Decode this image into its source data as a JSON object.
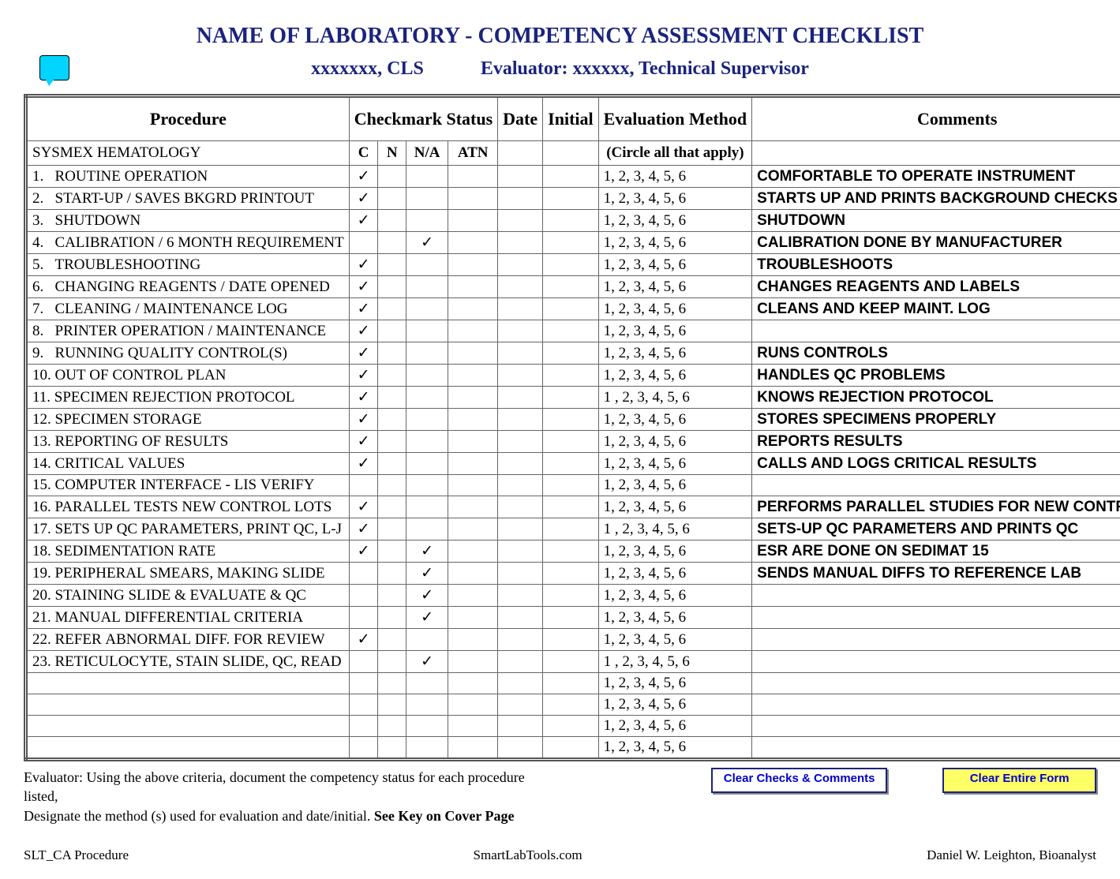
{
  "header": {
    "title": "NAME OF LABORATORY - COMPETENCY ASSESSMENT CHECKLIST",
    "person": "xxxxxxx, CLS",
    "evaluator_label": "Evaluator:",
    "evaluator": "xxxxxx, Technical Supervisor"
  },
  "columns": {
    "procedure": "Procedure",
    "checkmark": "Checkmark Status",
    "date": "Date",
    "initial": "Initial",
    "evaluation": "Evaluation Method",
    "comments": "Comments",
    "sub": {
      "c": "C",
      "n": "N",
      "na": "N/A",
      "atn": "ATN"
    }
  },
  "section": "SYSMEX HEMATOLOGY",
  "circle_note": "(Circle all that apply)",
  "eval_nums": "1,   2,   3,   4,   5,   6",
  "eval_nums_alt": "1 ,  2,   3,   4,   5,   6",
  "rows": [
    {
      "n": "1.",
      "proc": "ROUTINE OPERATION",
      "c": "✓",
      "na": "",
      "comm": "COMFORTABLE TO OPERATE INSTRUMENT",
      "alt": false
    },
    {
      "n": "2.",
      "proc": "START-UP / SAVES BKGRD PRINTOUT",
      "c": "✓",
      "na": "",
      "comm": "STARTS UP AND PRINTS BACKGROUND CHECKS",
      "alt": false
    },
    {
      "n": "3.",
      "proc": "SHUTDOWN",
      "c": "✓",
      "na": "",
      "comm": "SHUTDOWN",
      "alt": false
    },
    {
      "n": "4.",
      "proc": "CALIBRATION / 6 MONTH REQUIREMENT",
      "c": "",
      "na": "✓",
      "comm": "CALIBRATION DONE BY MANUFACTURER",
      "alt": false
    },
    {
      "n": "5.",
      "proc": "TROUBLESHOOTING",
      "c": "✓",
      "na": "",
      "comm": "TROUBLESHOOTS",
      "alt": false
    },
    {
      "n": "6.",
      "proc": "CHANGING REAGENTS / DATE OPENED",
      "c": "✓",
      "na": "",
      "comm": "CHANGES REAGENTS AND LABELS",
      "alt": false
    },
    {
      "n": "7.",
      "proc": "CLEANING / MAINTENANCE LOG",
      "c": "✓",
      "na": "",
      "comm": "CLEANS AND KEEP MAINT. LOG",
      "alt": false
    },
    {
      "n": "8.",
      "proc": "PRINTER OPERATION / MAINTENANCE",
      "c": "✓",
      "na": "",
      "comm": "",
      "alt": false
    },
    {
      "n": "9.",
      "proc": "RUNNING QUALITY CONTROL(S)",
      "c": "✓",
      "na": "",
      "comm": "RUNS CONTROLS",
      "alt": false
    },
    {
      "n": "10.",
      "proc": "OUT OF CONTROL PLAN",
      "c": "✓",
      "na": "",
      "comm": "HANDLES QC PROBLEMS",
      "alt": false
    },
    {
      "n": "11.",
      "proc": "SPECIMEN REJECTION PROTOCOL",
      "c": "✓",
      "na": "",
      "comm": "KNOWS REJECTION PROTOCOL",
      "alt": true
    },
    {
      "n": "12.",
      "proc": "SPECIMEN STORAGE",
      "c": "✓",
      "na": "",
      "comm": "STORES SPECIMENS PROPERLY",
      "alt": false
    },
    {
      "n": "13.",
      "proc": "REPORTING OF RESULTS",
      "c": "✓",
      "na": "",
      "comm": "REPORTS RESULTS",
      "alt": false
    },
    {
      "n": "14.",
      "proc": "CRITICAL VALUES",
      "c": "✓",
      "na": "",
      "comm": "CALLS AND LOGS CRITICAL RESULTS",
      "alt": false
    },
    {
      "n": "15.",
      "proc": "COMPUTER INTERFACE - LIS VERIFY",
      "c": "",
      "na": "",
      "comm": "",
      "alt": false
    },
    {
      "n": "16.",
      "proc": "PARALLEL TESTS NEW CONTROL LOTS",
      "c": "✓",
      "na": "",
      "comm": "PERFORMS PARALLEL STUDIES FOR NEW CONTROLS",
      "alt": false
    },
    {
      "n": "17.",
      "proc": "SETS UP QC PARAMETERS, PRINT QC, L-J",
      "c": "✓",
      "na": "",
      "comm": "SETS-UP QC PARAMETERS AND PRINTS QC",
      "alt": true
    },
    {
      "n": "18.",
      "proc": "SEDIMENTATION RATE",
      "c": "✓",
      "na": "✓",
      "comm": "ESR ARE DONE ON SEDIMAT 15",
      "alt": false
    },
    {
      "n": "19.",
      "proc": "PERIPHERAL SMEARS, MAKING SLIDE",
      "c": "",
      "na": "✓",
      "comm": "SENDS MANUAL DIFFS TO REFERENCE LAB",
      "alt": false
    },
    {
      "n": "20.",
      "proc": "STAINING SLIDE & EVALUATE & QC",
      "c": "",
      "na": "✓",
      "comm": "",
      "alt": false
    },
    {
      "n": "21.",
      "proc": "MANUAL DIFFERENTIAL CRITERIA",
      "c": "",
      "na": "✓",
      "comm": "",
      "alt": false
    },
    {
      "n": "22.",
      "proc": "REFER ABNORMAL DIFF. FOR REVIEW",
      "c": "✓",
      "na": "",
      "comm": "",
      "alt": false
    },
    {
      "n": "23.",
      "proc": "RETICULOCYTE, STAIN SLIDE, QC, READ",
      "c": "",
      "na": "✓",
      "comm": "",
      "alt": true
    },
    {
      "n": "",
      "proc": "",
      "c": "",
      "na": "",
      "comm": "",
      "alt": false
    },
    {
      "n": "",
      "proc": "",
      "c": "",
      "na": "",
      "comm": "",
      "alt": false
    },
    {
      "n": "",
      "proc": "",
      "c": "",
      "na": "",
      "comm": "",
      "alt": false
    },
    {
      "n": "",
      "proc": "",
      "c": "",
      "na": "",
      "comm": "",
      "alt": false
    }
  ],
  "footer": {
    "instruction1": "Evaluator: Using the above criteria, document the competency status for each procedure listed,",
    "instruction2": "Designate the method (s) used for evaluation and date/initial.  ",
    "instruction_bold": "See Key on Cover Page",
    "btn_clear_checks": "Clear Checks & Comments",
    "btn_clear_form": "Clear Entire Form",
    "left": "SLT_CA Procedure",
    "center": "SmartLabTools.com",
    "right": "Daniel W. Leighton, Bioanalyst"
  }
}
